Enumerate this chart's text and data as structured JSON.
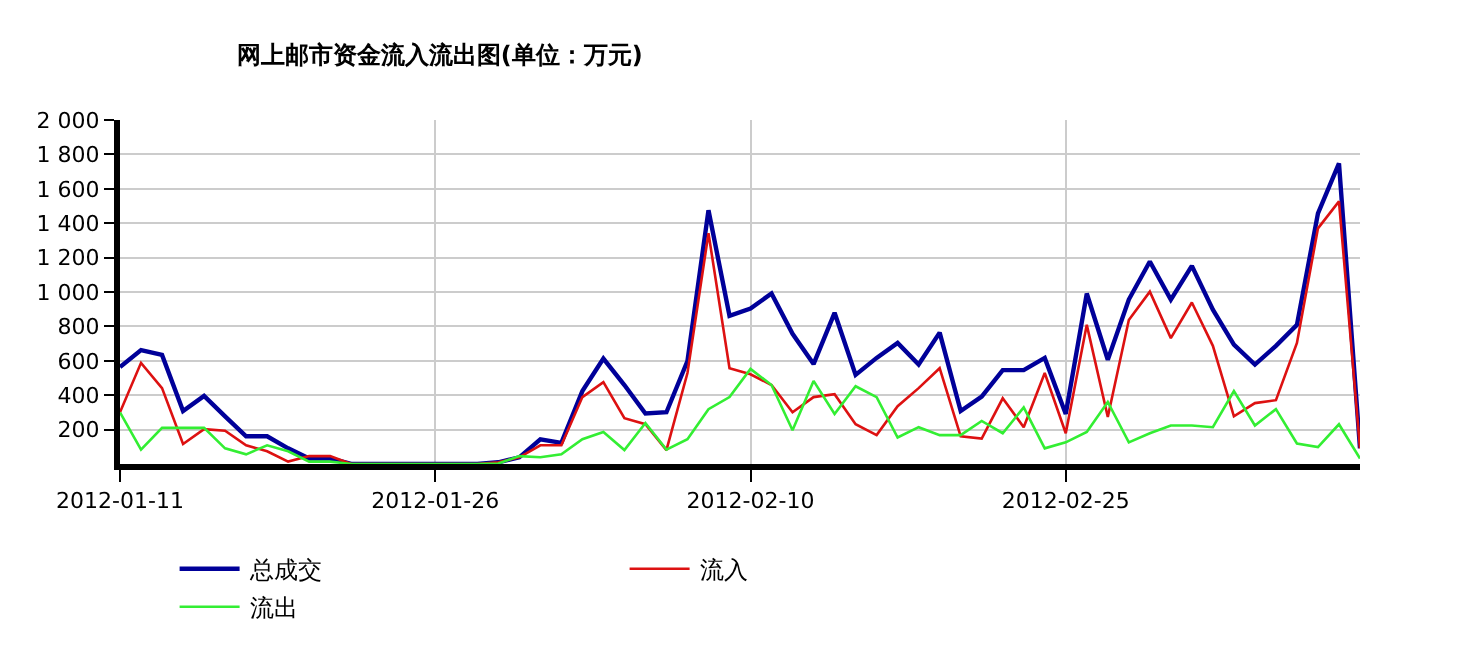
{
  "chart_data": {
    "type": "line",
    "title": "网上邮市资金流入流出图(单位：万元)",
    "x": [
      "2012-01-11",
      "2012-01-12",
      "2012-01-13",
      "2012-01-14",
      "2012-01-15",
      "2012-01-16",
      "2012-01-17",
      "2012-01-18",
      "2012-01-19",
      "2012-01-20",
      "2012-01-21",
      "2012-01-22",
      "2012-01-23",
      "2012-01-24",
      "2012-01-25",
      "2012-01-26",
      "2012-01-27",
      "2012-01-28",
      "2012-01-29",
      "2012-01-30",
      "2012-01-31",
      "2012-02-01",
      "2012-02-02",
      "2012-02-03",
      "2012-02-04",
      "2012-02-05",
      "2012-02-06",
      "2012-02-07",
      "2012-02-08",
      "2012-02-09",
      "2012-02-10",
      "2012-02-11",
      "2012-02-12",
      "2012-02-13",
      "2012-02-14",
      "2012-02-15",
      "2012-02-16",
      "2012-02-17",
      "2012-02-18",
      "2012-02-19",
      "2012-02-20",
      "2012-02-21",
      "2012-02-22",
      "2012-02-23",
      "2012-02-24",
      "2012-02-25",
      "2012-02-26",
      "2012-02-27",
      "2012-02-28",
      "2012-02-29",
      "2012-03-01",
      "2012-03-02",
      "2012-03-03",
      "2012-03-04",
      "2012-03-05",
      "2012-03-06",
      "2012-03-07",
      "2012-03-08",
      "2012-03-09",
      "2012-03-10"
    ],
    "series": [
      {
        "name": "总成交",
        "color": "#000099",
        "values": [
          564,
          662,
          634,
          308,
          396,
          277,
          161,
          161,
          91,
          32,
          32,
          0,
          0,
          0,
          0,
          0,
          0,
          0,
          10,
          39,
          144,
          123,
          424,
          613,
          459,
          294,
          301,
          599,
          1475,
          862,
          904,
          991,
          757,
          581,
          879,
          518,
          617,
          704,
          578,
          764,
          308,
          392,
          546,
          546,
          617,
          291,
          991,
          606,
          956,
          1177,
          956,
          1152,
          897,
          694,
          578,
          687,
          809,
          1457,
          1748,
          91
        ]
      },
      {
        "name": "流入",
        "color": "#dd1111",
        "values": [
          301,
          588,
          441,
          116,
          203,
          193,
          109,
          74,
          14,
          46,
          46,
          0,
          0,
          0,
          0,
          0,
          0,
          0,
          10,
          39,
          109,
          109,
          389,
          476,
          266,
          231,
          81,
          529,
          1342,
          557,
          522,
          459,
          301,
          389,
          406,
          231,
          168,
          336,
          441,
          557,
          161,
          148,
          382,
          214,
          529,
          179,
          809,
          273,
          837,
          1002,
          732,
          939,
          687,
          277,
          354,
          371,
          704,
          1370,
          1527,
          91
        ]
      },
      {
        "name": "流出",
        "color": "#33ee33",
        "values": [
          300,
          84,
          210,
          210,
          210,
          91,
          56,
          109,
          74,
          14,
          14,
          0,
          0,
          0,
          0,
          0,
          0,
          0,
          3,
          46,
          39,
          56,
          144,
          186,
          81,
          238,
          84,
          144,
          319,
          389,
          553,
          459,
          196,
          483,
          291,
          452,
          389,
          154,
          214,
          168,
          168,
          250,
          179,
          329,
          91,
          126,
          186,
          361,
          126,
          179,
          224,
          224,
          214,
          424,
          224,
          319,
          119,
          98,
          231,
          32
        ]
      }
    ],
    "xlim": [
      "2012-01-11",
      "2012-03-10"
    ],
    "xticks": [
      {
        "value": "2012-01-11",
        "label": "2012-01-11"
      },
      {
        "value": "2012-01-26",
        "label": "2012-01-26"
      },
      {
        "value": "2012-02-10",
        "label": "2012-02-10"
      },
      {
        "value": "2012-02-25",
        "label": "2012-02-25"
      }
    ],
    "ylim": [
      0,
      2000
    ],
    "yticks": [
      200,
      400,
      600,
      800,
      {
        "value": 1000,
        "label": "1 000"
      },
      {
        "value": 1200,
        "label": "1 200"
      },
      {
        "value": 1400,
        "label": "1 400"
      },
      {
        "value": 1600,
        "label": "1 600"
      },
      {
        "value": 1800,
        "label": "1 800"
      },
      {
        "value": 2000,
        "label": "2 000"
      }
    ],
    "grid": true,
    "legend": "bottom",
    "marker": "none",
    "line_style": "solid"
  }
}
